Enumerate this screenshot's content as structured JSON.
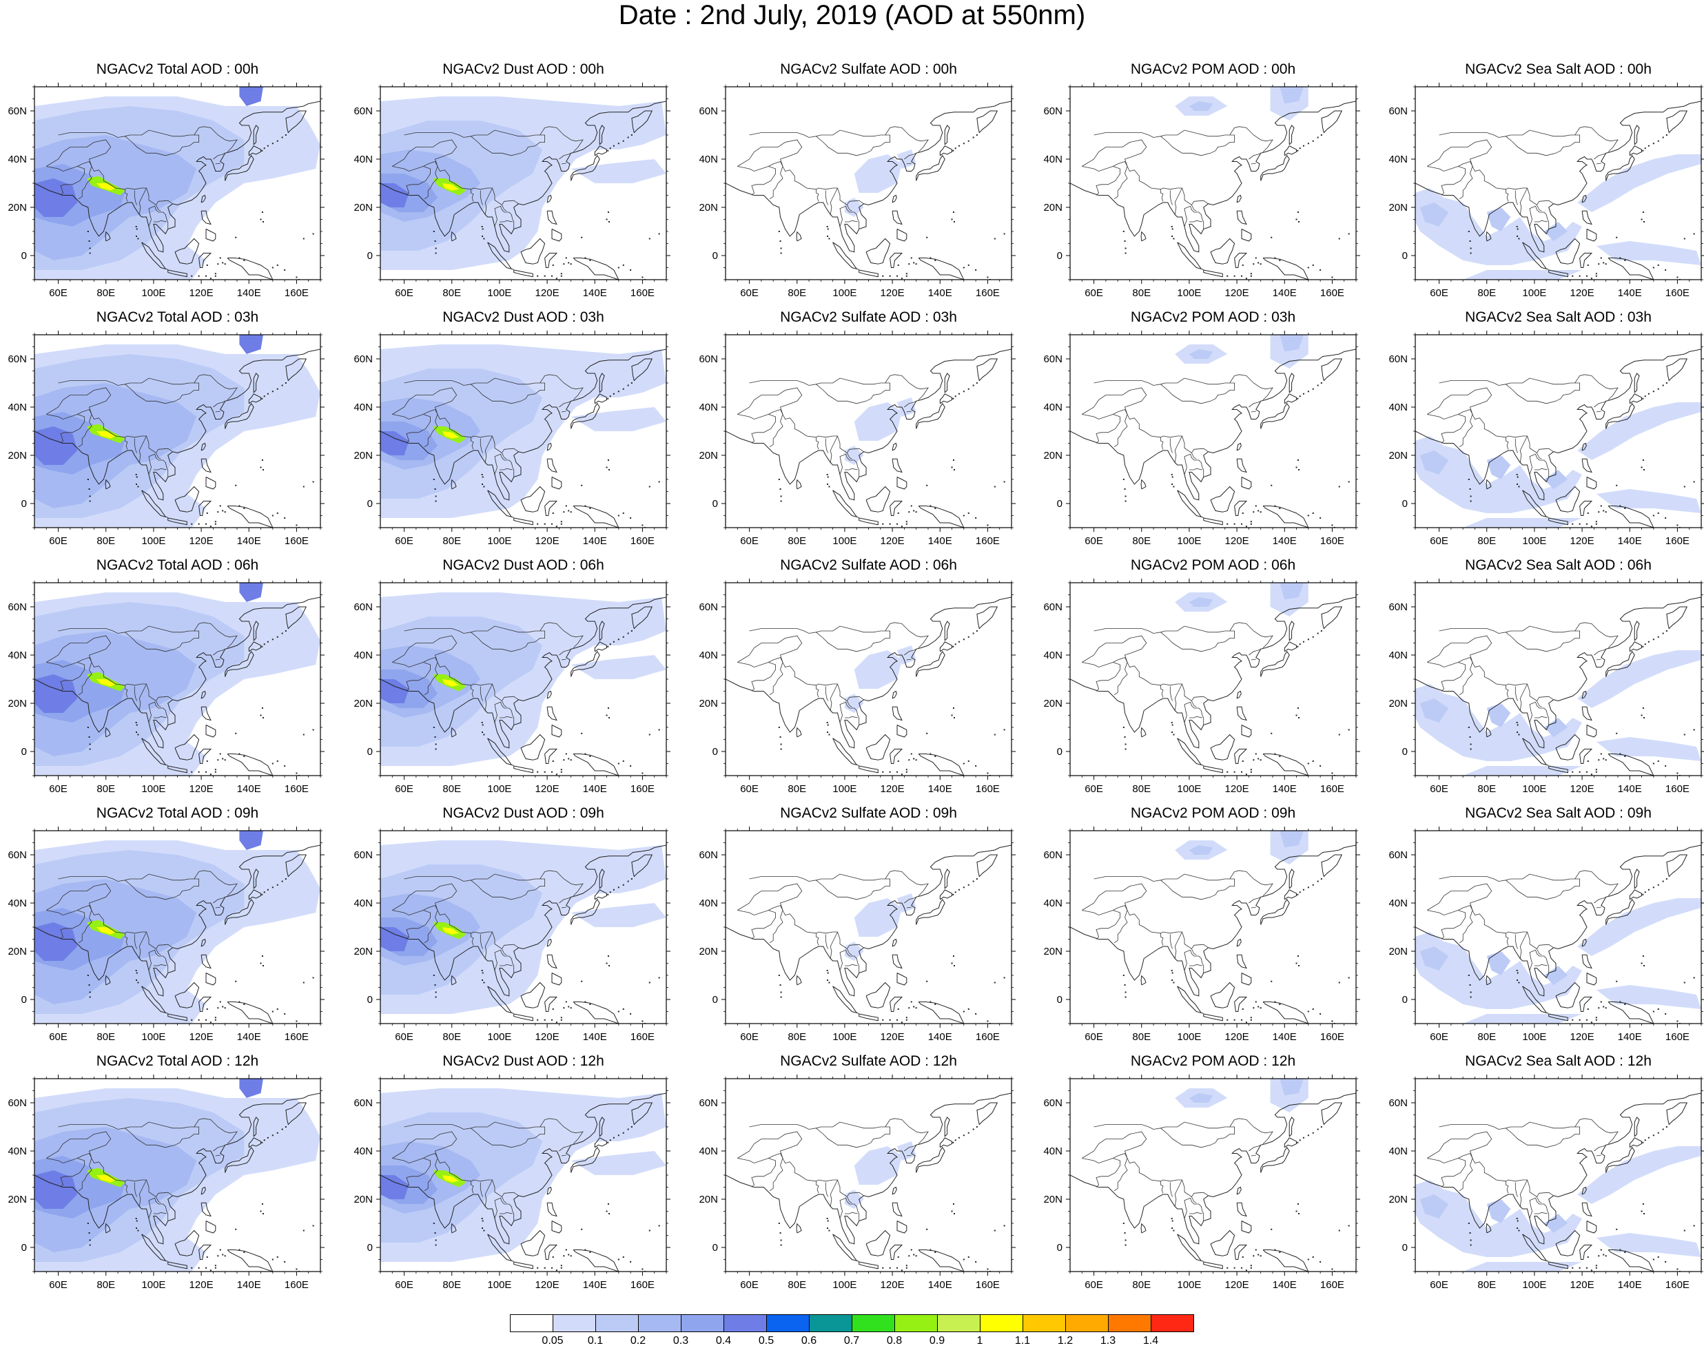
{
  "title": "Date : 2nd July, 2019 (AOD at 550nm)",
  "axes": {
    "lon_ticks": [
      "60E",
      "80E",
      "100E",
      "120E",
      "140E",
      "160E"
    ],
    "lon_values": [
      60,
      80,
      100,
      120,
      140,
      160
    ],
    "lat_ticks": [
      "60N",
      "40N",
      "20N",
      "0"
    ],
    "lat_values": [
      60,
      40,
      20,
      0
    ],
    "lon_range": [
      50,
      170
    ],
    "lat_range": [
      -10,
      70
    ]
  },
  "panel_rows": [
    {
      "titles": [
        "NGACv2 Total AOD : 00h",
        "NGACv2 Dust AOD : 00h",
        "NGACv2 Sulfate AOD : 00h",
        "NGACv2 POM AOD : 00h",
        "NGACv2 Sea Salt AOD : 00h"
      ]
    },
    {
      "titles": [
        "NGACv2 Total AOD : 03h",
        "NGACv2 Dust AOD : 03h",
        "NGACv2 Sulfate AOD : 03h",
        "NGACv2 POM AOD : 03h",
        "NGACv2 Sea Salt AOD : 03h"
      ]
    },
    {
      "titles": [
        "NGACv2 Total AOD : 06h",
        "NGACv2 Dust AOD : 06h",
        "NGACv2 Sulfate AOD : 06h",
        "NGACv2 POM AOD : 06h",
        "NGACv2 Sea Salt AOD : 06h"
      ]
    },
    {
      "titles": [
        "NGACv2 Total AOD : 09h",
        "NGACv2 Dust AOD : 09h",
        "NGACv2 Sulfate AOD : 09h",
        "NGACv2 POM AOD : 09h",
        "NGACv2 Sea Salt  AOD : 09h"
      ]
    },
    {
      "titles": [
        "NGACv2 Total AOD  : 12h",
        "NGACv2 Dust AOD : 12h",
        "NGACv2 Sulfate AOD : 12h",
        "NGACv2 POM  AOD : 12h",
        "NGACv2 Sea Salt  AOD : 12h"
      ]
    }
  ],
  "colorbar": {
    "labels": [
      "0.05",
      "0.1",
      "0.2",
      "0.3",
      "0.4",
      "0.5",
      "0.6",
      "0.7",
      "0.8",
      "0.9",
      "1",
      "1.1",
      "1.2",
      "1.3",
      "1.4"
    ],
    "colors": [
      "#ffffff",
      "#d2dcfa",
      "#bccbf6",
      "#a6b9f2",
      "#8fa5ee",
      "#6e7ee6",
      "#0a64f0",
      "#0a9696",
      "#32e11e",
      "#96f014",
      "#c8f050",
      "#ffff00",
      "#ffc800",
      "#ffaa00",
      "#ff7800",
      "#ff2814"
    ]
  }
}
